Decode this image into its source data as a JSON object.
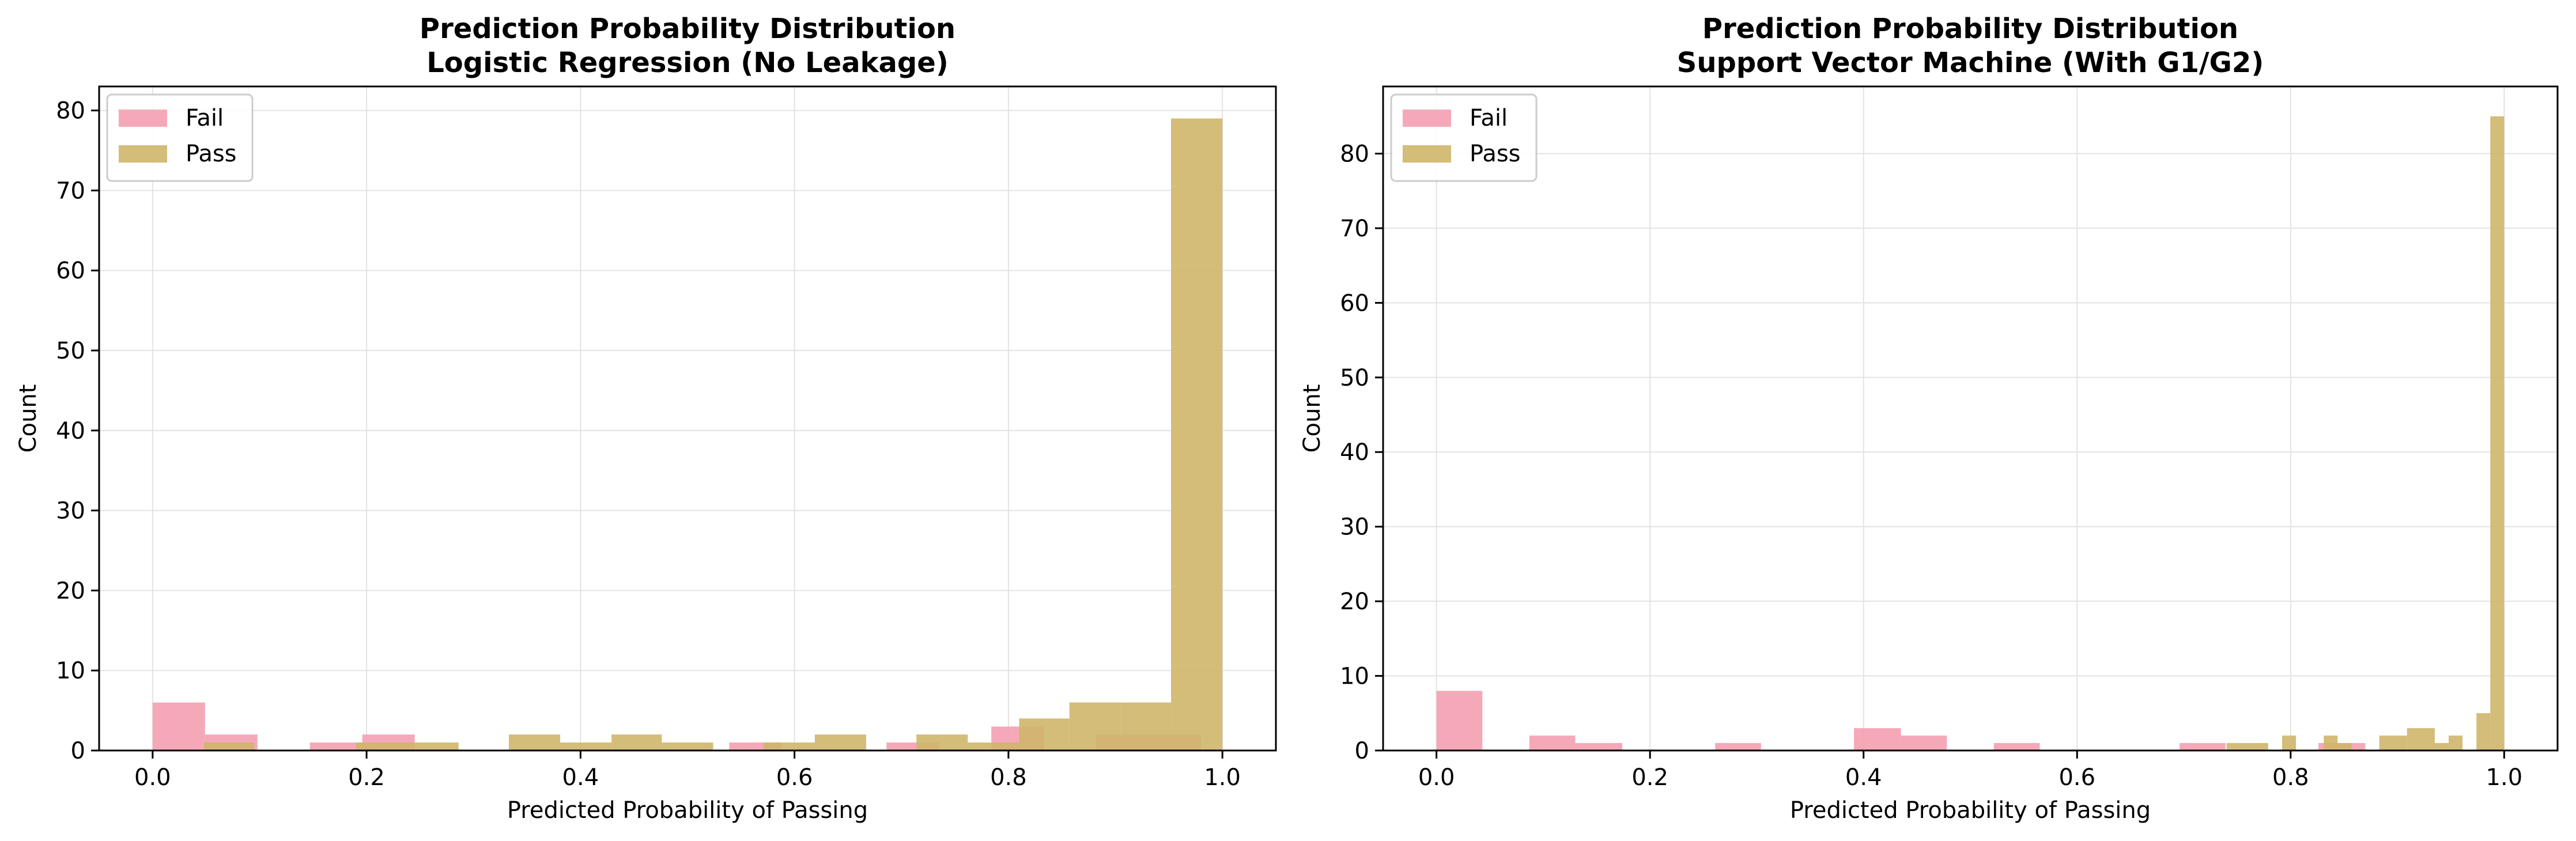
{
  "chart_data": [
    {
      "type": "bar",
      "subtype": "histogram-overlay",
      "title": "Prediction Probability Distribution",
      "subtitle": "Logistic Regression (No Leakage)",
      "xlabel": "Predicted Probability of Passing",
      "ylabel": "Count",
      "xlim": [
        -0.05,
        1.05
      ],
      "ylim": [
        0,
        83
      ],
      "xticks": [
        0.0,
        0.2,
        0.4,
        0.6,
        0.8,
        1.0
      ],
      "xtick_labels": [
        "0.0",
        "0.2",
        "0.4",
        "0.6",
        "0.8",
        "1.0"
      ],
      "yticks": [
        0,
        10,
        20,
        30,
        40,
        50,
        60,
        70,
        80
      ],
      "ytick_labels": [
        "0",
        "10",
        "20",
        "30",
        "40",
        "50",
        "60",
        "70",
        "80"
      ],
      "grid": true,
      "legend_position": "top-left",
      "series": [
        {
          "name": "Fail",
          "color": "#f4a0b0",
          "bins": [
            {
              "x0": 0.0,
              "x1": 0.049,
              "count": 6
            },
            {
              "x0": 0.049,
              "x1": 0.098,
              "count": 2
            },
            {
              "x0": 0.147,
              "x1": 0.196,
              "count": 1
            },
            {
              "x0": 0.196,
              "x1": 0.245,
              "count": 2
            },
            {
              "x0": 0.539,
              "x1": 0.588,
              "count": 1
            },
            {
              "x0": 0.686,
              "x1": 0.735,
              "count": 1
            },
            {
              "x0": 0.784,
              "x1": 0.833,
              "count": 3
            },
            {
              "x0": 0.882,
              "x1": 0.931,
              "count": 2
            },
            {
              "x0": 0.931,
              "x1": 0.98,
              "count": 2
            }
          ]
        },
        {
          "name": "Pass",
          "color": "#cfb56a",
          "bins": [
            {
              "x0": 0.048,
              "x1": 0.095,
              "count": 1
            },
            {
              "x0": 0.19,
              "x1": 0.238,
              "count": 1
            },
            {
              "x0": 0.238,
              "x1": 0.286,
              "count": 1
            },
            {
              "x0": 0.333,
              "x1": 0.381,
              "count": 2
            },
            {
              "x0": 0.381,
              "x1": 0.429,
              "count": 1
            },
            {
              "x0": 0.429,
              "x1": 0.476,
              "count": 2
            },
            {
              "x0": 0.476,
              "x1": 0.524,
              "count": 1
            },
            {
              "x0": 0.571,
              "x1": 0.619,
              "count": 1
            },
            {
              "x0": 0.619,
              "x1": 0.667,
              "count": 2
            },
            {
              "x0": 0.714,
              "x1": 0.762,
              "count": 2
            },
            {
              "x0": 0.762,
              "x1": 0.81,
              "count": 1
            },
            {
              "x0": 0.81,
              "x1": 0.857,
              "count": 4
            },
            {
              "x0": 0.857,
              "x1": 0.905,
              "count": 6
            },
            {
              "x0": 0.905,
              "x1": 0.952,
              "count": 6
            },
            {
              "x0": 0.952,
              "x1": 1.0,
              "count": 79
            }
          ]
        }
      ]
    },
    {
      "type": "bar",
      "subtype": "histogram-overlay",
      "title": "Prediction Probability Distribution",
      "subtitle": "Support Vector Machine (With G1/G2)",
      "xlabel": "Predicted Probability of Passing",
      "ylabel": "Count",
      "xlim": [
        -0.05,
        1.05
      ],
      "ylim": [
        0,
        89
      ],
      "xticks": [
        0.0,
        0.2,
        0.4,
        0.6,
        0.8,
        1.0
      ],
      "xtick_labels": [
        "0.0",
        "0.2",
        "0.4",
        "0.6",
        "0.8",
        "1.0"
      ],
      "yticks": [
        0,
        10,
        20,
        30,
        40,
        50,
        60,
        70,
        80
      ],
      "ytick_labels": [
        "0",
        "10",
        "20",
        "30",
        "40",
        "50",
        "60",
        "70",
        "80"
      ],
      "grid": true,
      "legend_position": "top-left",
      "series": [
        {
          "name": "Fail",
          "color": "#f4a0b0",
          "bins": [
            {
              "x0": 0.0,
              "x1": 0.043,
              "count": 8
            },
            {
              "x0": 0.087,
              "x1": 0.13,
              "count": 2
            },
            {
              "x0": 0.13,
              "x1": 0.174,
              "count": 1
            },
            {
              "x0": 0.261,
              "x1": 0.304,
              "count": 1
            },
            {
              "x0": 0.391,
              "x1": 0.435,
              "count": 3
            },
            {
              "x0": 0.435,
              "x1": 0.478,
              "count": 2
            },
            {
              "x0": 0.522,
              "x1": 0.565,
              "count": 1
            },
            {
              "x0": 0.696,
              "x1": 0.739,
              "count": 1
            },
            {
              "x0": 0.826,
              "x1": 0.87,
              "count": 1
            }
          ]
        },
        {
          "name": "Pass",
          "color": "#cfb56a",
          "bins": [
            {
              "x0": 0.74,
              "x1": 0.779,
              "count": 1
            },
            {
              "x0": 0.779,
              "x1": 0.792,
              "count": 0
            },
            {
              "x0": 0.792,
              "x1": 0.805,
              "count": 2
            },
            {
              "x0": 0.831,
              "x1": 0.844,
              "count": 2
            },
            {
              "x0": 0.844,
              "x1": 0.857,
              "count": 1
            },
            {
              "x0": 0.883,
              "x1": 0.909,
              "count": 2
            },
            {
              "x0": 0.909,
              "x1": 0.935,
              "count": 3
            },
            {
              "x0": 0.935,
              "x1": 0.948,
              "count": 1
            },
            {
              "x0": 0.948,
              "x1": 0.961,
              "count": 2
            },
            {
              "x0": 0.974,
              "x1": 0.987,
              "count": 5
            },
            {
              "x0": 0.987,
              "x1": 1.0,
              "count": 85
            }
          ]
        }
      ]
    }
  ]
}
